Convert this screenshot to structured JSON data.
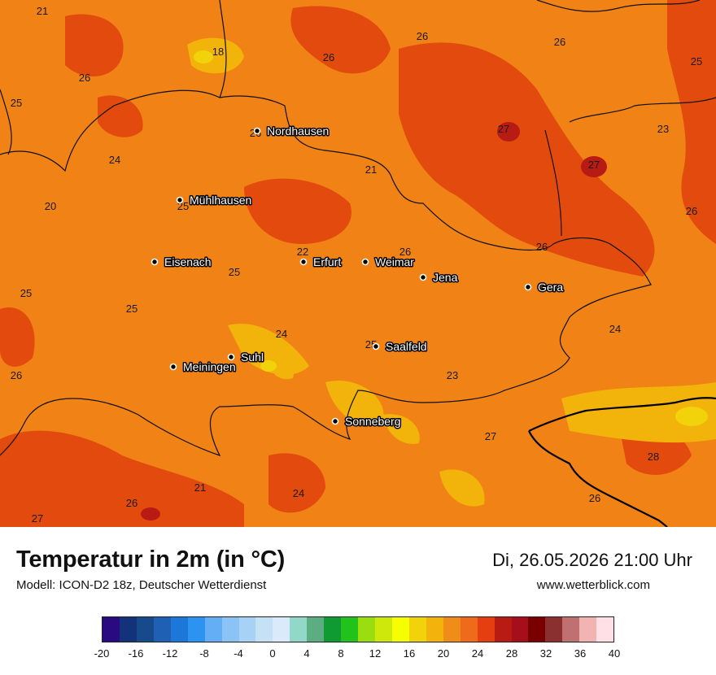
{
  "title": "Temperatur in 2m (in °C)",
  "model": "Modell: ICON-D2 18z, Deutscher Wetterdienst",
  "datetime": "Di, 26.05.2026 21:00 Uhr",
  "website": "www.wetterblick.com",
  "cities": [
    {
      "name": "Nordhausen"
    },
    {
      "name": "Mühlhausen"
    },
    {
      "name": "Eisenach"
    },
    {
      "name": "Erfurt"
    },
    {
      "name": "Weimar"
    },
    {
      "name": "Jena"
    },
    {
      "name": "Gera"
    },
    {
      "name": "Suhl"
    },
    {
      "name": "Meiningen"
    },
    {
      "name": "Saalfeld"
    },
    {
      "name": "Sonneberg"
    }
  ],
  "temperature_labels": [
    "21",
    "26",
    "26",
    "25",
    "18",
    "26",
    "26",
    "25",
    "26",
    "27",
    "23",
    "27",
    "24",
    "21",
    "20",
    "25",
    "26",
    "22",
    "26",
    "26",
    "25",
    "25",
    "24",
    "25",
    "26",
    "23",
    "25",
    "24",
    "27",
    "28",
    "26",
    "21",
    "24",
    "26",
    "27"
  ],
  "legend": {
    "ticks": [
      "-20",
      "-16",
      "-12",
      "-8",
      "-4",
      "0",
      "4",
      "8",
      "12",
      "16",
      "20",
      "24",
      "28",
      "32",
      "36",
      "40"
    ],
    "colors": [
      "#2a0a80",
      "#14327a",
      "#174a8a",
      "#1f5fb4",
      "#1c78d8",
      "#2c93f0",
      "#64aef5",
      "#8cc3f5",
      "#a8d2f5",
      "#c6e0f5",
      "#dbeafa",
      "#92d8c8",
      "#5cae82",
      "#0f9a32",
      "#20c21b",
      "#9ade10",
      "#cfe80c",
      "#f5ff00",
      "#f2d20a",
      "#f2b30a",
      "#f08c1a",
      "#ef6a1a",
      "#e53e10",
      "#b81a14",
      "#a50f1c",
      "#7a0000",
      "#8a3030",
      "#c07070",
      "#f2b3b3",
      "#ffe0e6"
    ]
  }
}
